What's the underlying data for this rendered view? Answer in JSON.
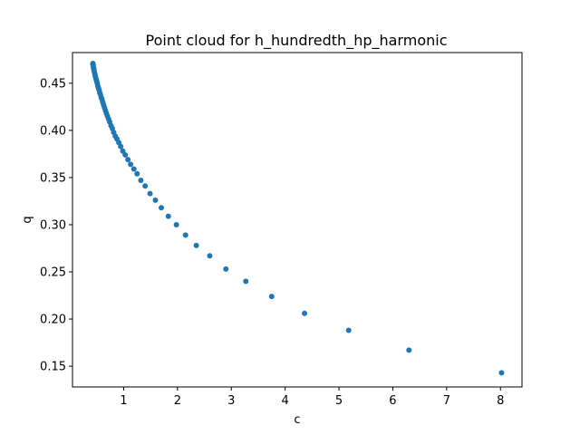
{
  "chart_data": {
    "type": "scatter",
    "title": "Point cloud for h_hundredth_hp_harmonic",
    "xlabel": "c",
    "ylabel": "q",
    "xlim": [
      0.05,
      8.4
    ],
    "ylim": [
      0.128,
      0.4825
    ],
    "xticks": [
      1,
      2,
      3,
      4,
      5,
      6,
      7,
      8
    ],
    "yticks": [
      0.15,
      0.2,
      0.25,
      0.3,
      0.35,
      0.4,
      0.45
    ],
    "xtick_labels": [
      "1",
      "2",
      "3",
      "4",
      "5",
      "6",
      "7",
      "8"
    ],
    "ytick_labels": [
      "0.15",
      "0.20",
      "0.25",
      "0.30",
      "0.35",
      "0.40",
      "0.45"
    ],
    "grid": false,
    "marker_color": "#1f77b4",
    "series": [
      {
        "x": [
          8.02,
          6.3,
          5.18,
          4.36,
          3.75,
          3.27,
          2.9,
          2.6,
          2.35,
          2.15,
          1.98,
          1.83,
          1.7,
          1.59,
          1.49,
          1.4,
          1.32,
          1.25,
          1.19,
          1.13,
          1.08,
          1.03,
          0.985,
          0.945,
          0.91,
          0.875,
          0.845,
          0.815,
          0.79,
          0.765,
          0.74,
          0.72,
          0.7,
          0.68,
          0.662,
          0.645,
          0.628,
          0.612,
          0.597,
          0.583,
          0.569,
          0.556,
          0.544,
          0.532,
          0.521,
          0.51,
          0.5,
          0.49,
          0.481,
          0.472,
          0.464,
          0.456,
          0.449,
          0.443,
          0.438,
          0.434,
          0.431,
          0.429
        ],
        "y": [
          0.143,
          0.167,
          0.188,
          0.206,
          0.224,
          0.24,
          0.253,
          0.267,
          0.278,
          0.289,
          0.3,
          0.309,
          0.318,
          0.326,
          0.333,
          0.341,
          0.347,
          0.354,
          0.359,
          0.364,
          0.369,
          0.374,
          0.378,
          0.383,
          0.387,
          0.391,
          0.394,
          0.398,
          0.402,
          0.405,
          0.409,
          0.412,
          0.415,
          0.418,
          0.421,
          0.424,
          0.427,
          0.43,
          0.433,
          0.435,
          0.438,
          0.44,
          0.443,
          0.445,
          0.447,
          0.45,
          0.452,
          0.454,
          0.456,
          0.458,
          0.46,
          0.462,
          0.464,
          0.466,
          0.467,
          0.469,
          0.47,
          0.471
        ]
      }
    ]
  }
}
